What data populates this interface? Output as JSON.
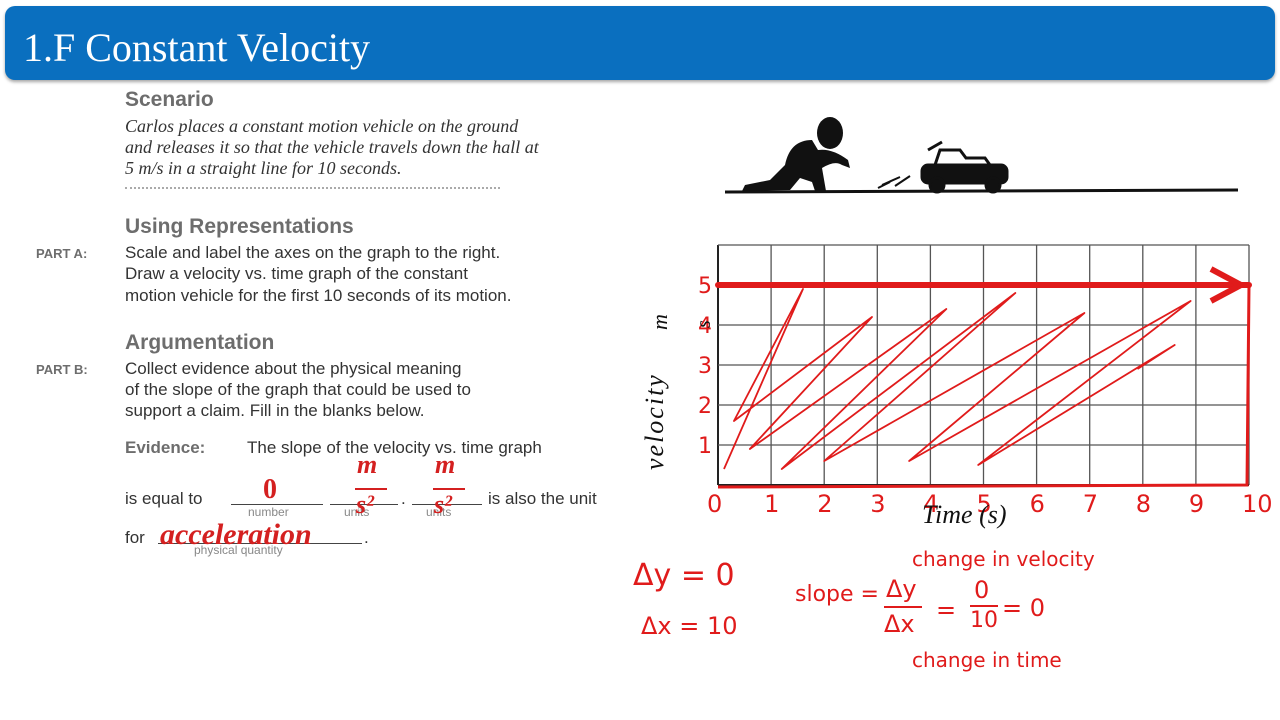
{
  "slide_title": "1.F Constant Velocity",
  "scenario": {
    "heading": "Scenario",
    "line1": "Carlos places a constant motion vehicle on the ground",
    "line2": "and releases it so that the vehicle travels down the hall at",
    "line3": "5 m/s in a straight line for 10 seconds."
  },
  "representations": {
    "heading": "Using Representations",
    "part_label": "PART A:",
    "line1": "Scale and label the axes on the graph to the right.",
    "line2": "Draw a velocity vs. time graph of the constant",
    "line3": "motion vehicle for the first 10 seconds of its motion."
  },
  "argumentation": {
    "heading": "Argumentation",
    "part_label": "PART B:",
    "line1": "Collect evidence about the physical meaning",
    "line2": "of the slope of the graph that could be used to",
    "line3": "support a claim. Fill in the blanks below."
  },
  "evidence": {
    "label": "Evidence:",
    "text1": "The slope of the velocity vs. time graph",
    "is_equal_to": "is equal to",
    "also_unit": "is also the unit",
    "for_label": "for",
    "period": ".",
    "sub_number": "number",
    "sub_units": "units",
    "sub_units2": "units",
    "sub_quantity": "physical quantity",
    "answer_number": "0",
    "answer_units_num": "m",
    "answer_units_den": "s²",
    "answer_units2_num": "m",
    "answer_units2_den": "s²",
    "answer_quantity": "acceleration"
  },
  "graph": {
    "y_axis_label": "velocity",
    "y_unit_num": "m",
    "y_unit_den": "s",
    "x_axis_label": "Time (s)",
    "y_ticks": [
      "1",
      "2",
      "3",
      "4",
      "5"
    ],
    "x_ticks": [
      "0",
      "1",
      "2",
      "3",
      "4",
      "5",
      "6",
      "7",
      "8",
      "9",
      "10"
    ]
  },
  "chart_data": {
    "type": "line",
    "x": [
      0,
      10
    ],
    "series": [
      {
        "values": [
          5,
          5
        ]
      }
    ],
    "xlabel": "Time (s)",
    "ylabel": "velocity (m/s)",
    "xlim": [
      0,
      10
    ],
    "ylim": [
      0,
      6
    ],
    "grid": true
  },
  "handwriting": {
    "dy": "Δy = 0",
    "dx": "Δx = 10",
    "change_velocity": "change in velocity",
    "slope": "slope =",
    "dy_frac": "Δy",
    "dx_frac": "Δx",
    "equals1": "=",
    "frac_num": "0",
    "frac_den": "10",
    "equals_zero": "= 0",
    "change_time": "change in time"
  },
  "colors": {
    "title_bar": "#0a6fbf",
    "ink": "#e01b1b"
  }
}
